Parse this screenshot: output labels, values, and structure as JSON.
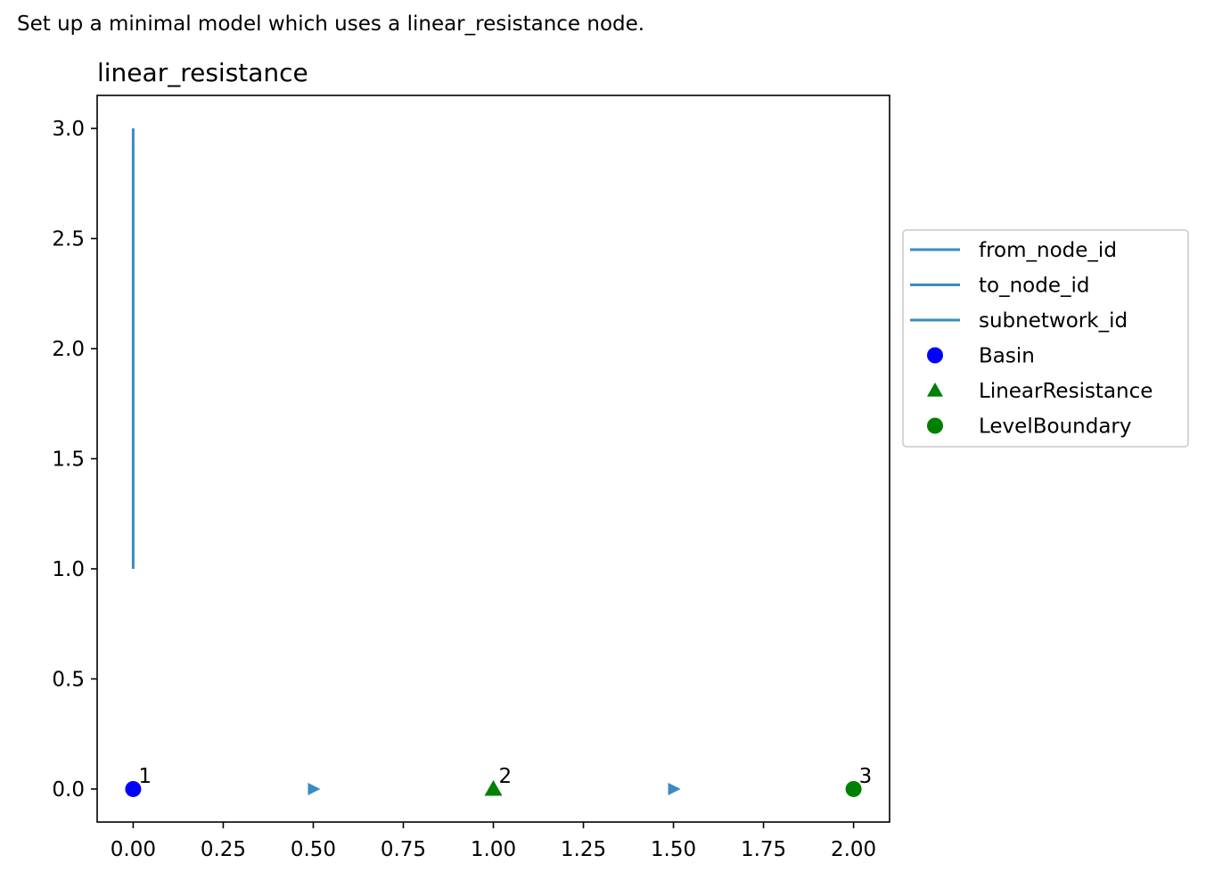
{
  "caption": "Set up a minimal model which uses a linear_resistance node.",
  "chart_data": {
    "type": "scatter",
    "title": "linear_resistance",
    "xlabel": "",
    "ylabel": "",
    "xlim": [
      -0.1,
      2.1
    ],
    "ylim": [
      -0.15,
      3.15
    ],
    "xticks": [
      "0.00",
      "0.25",
      "0.50",
      "0.75",
      "1.00",
      "1.25",
      "1.50",
      "1.75",
      "2.00"
    ],
    "yticks": [
      "0.0",
      "0.5",
      "1.0",
      "1.5",
      "2.0",
      "2.5",
      "3.0"
    ],
    "grid": false,
    "legend_position": "center-right outside",
    "lines": [
      {
        "name": "from_node_id",
        "color": "#3a8bc2",
        "x": [
          0,
          0
        ],
        "y": [
          1,
          3
        ]
      },
      {
        "name": "to_node_id",
        "color": "#3a8bc2",
        "x": [],
        "y": []
      },
      {
        "name": "subnetwork_id",
        "color": "#3a8bc2",
        "x": [],
        "y": []
      }
    ],
    "nodes": [
      {
        "series": "Basin",
        "marker": "circle",
        "color": "#0000ff",
        "x": 0,
        "y": 0,
        "label": "1"
      },
      {
        "series": "LinearResistance",
        "marker": "triangle",
        "color": "#008000",
        "x": 1,
        "y": 0,
        "label": "2"
      },
      {
        "series": "LevelBoundary",
        "marker": "circle",
        "color": "#008000",
        "x": 2,
        "y": 0,
        "label": "3"
      }
    ],
    "edge_arrows": [
      {
        "x": 0.5,
        "y": 0,
        "color": "#3a8bc2"
      },
      {
        "x": 1.5,
        "y": 0,
        "color": "#3a8bc2"
      }
    ],
    "legend": [
      {
        "label": "from_node_id",
        "kind": "line",
        "color": "#3a8bc2"
      },
      {
        "label": "to_node_id",
        "kind": "line",
        "color": "#3a8bc2"
      },
      {
        "label": "subnetwork_id",
        "kind": "line",
        "color": "#3a8bc2"
      },
      {
        "label": "Basin",
        "kind": "circle",
        "color": "#0000ff"
      },
      {
        "label": "LinearResistance",
        "kind": "triangle",
        "color": "#008000"
      },
      {
        "label": "LevelBoundary",
        "kind": "circle",
        "color": "#008000"
      }
    ]
  }
}
